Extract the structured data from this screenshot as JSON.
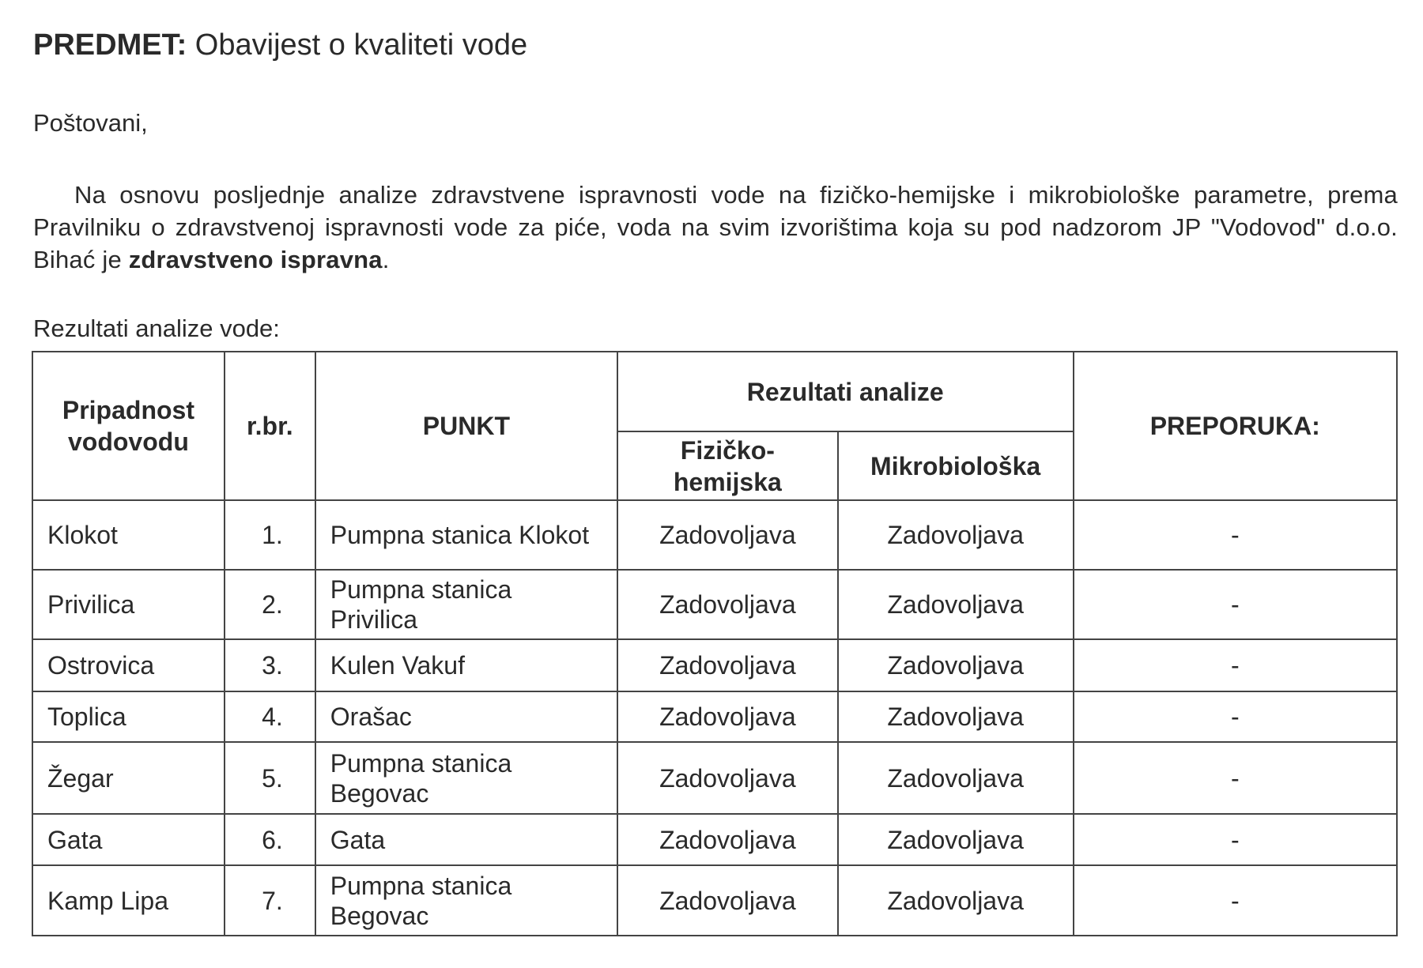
{
  "subject": {
    "label": "PREDMET:",
    "text": "Obavijest o kvaliteti vode"
  },
  "greeting": "Poštovani,",
  "paragraph": {
    "text": "Na osnovu posljednje analize zdravstvene ispravnosti vode na fizičko-hemijske i mikrobiološke parametre, prema Pravilniku o zdravstvenoj ispravnosti vode za piće, voda na svim izvorištima koja su pod nadzorom JP \"Vodovod\" d.o.o. Bihać je ",
    "bold": "zdravstveno ispravna",
    "end": "."
  },
  "table_caption": "Rezultati analize vode:",
  "table": {
    "headers": {
      "owner": "Pripadnost vodovodu",
      "num": "r.br.",
      "point": "PUNKT",
      "results": "Rezultati analize",
      "phys": "Fizičko-hemijska",
      "micro": "Mikrobiološka",
      "rec": "PREPORUKA:"
    },
    "rows": [
      {
        "owner": "Klokot",
        "num": "1.",
        "point": "Pumpna stanica Klokot",
        "phys": "Zadovoljava",
        "micro": "Zadovoljava",
        "rec": "-"
      },
      {
        "owner": "Privilica",
        "num": "2.",
        "point": "Pumpna stanica Privilica",
        "phys": "Zadovoljava",
        "micro": "Zadovoljava",
        "rec": "-"
      },
      {
        "owner": "Ostrovica",
        "num": "3.",
        "point": "Kulen Vakuf",
        "phys": "Zadovoljava",
        "micro": "Zadovoljava",
        "rec": "-"
      },
      {
        "owner": "Toplica",
        "num": "4.",
        "point": "Orašac",
        "phys": "Zadovoljava",
        "micro": "Zadovoljava",
        "rec": "-"
      },
      {
        "owner": "Žegar",
        "num": "5.",
        "point": "Pumpna stanica Begovac",
        "phys": "Zadovoljava",
        "micro": "Zadovoljava",
        "rec": "-"
      },
      {
        "owner": "Gata",
        "num": "6.",
        "point": "Gata",
        "phys": "Zadovoljava",
        "micro": "Zadovoljava",
        "rec": "-"
      },
      {
        "owner": "Kamp Lipa",
        "num": "7.",
        "point": "Pumpna stanica Begovac",
        "phys": "Zadovoljava",
        "micro": "Zadovoljava",
        "rec": "-"
      }
    ]
  }
}
